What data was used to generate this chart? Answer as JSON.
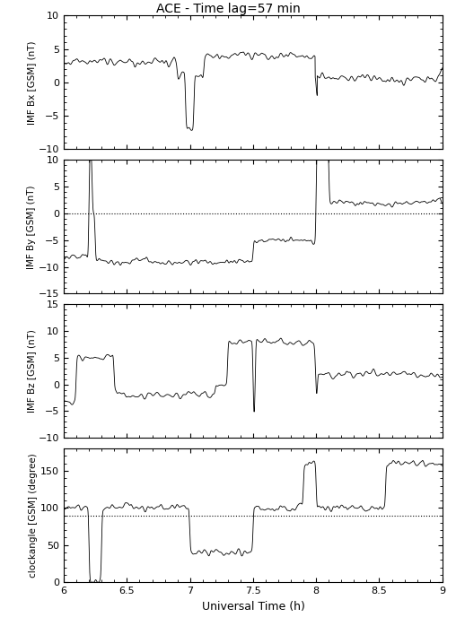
{
  "title": "ACE - Time lag=57 min",
  "xlabel": "Universal Time (h)",
  "xlim": [
    6,
    9
  ],
  "xticks": [
    6,
    6.5,
    7,
    7.5,
    8,
    8.5,
    9
  ],
  "panels": [
    {
      "ylabel": "IMF Bx [GSM] (nT)",
      "ylim": [
        -10,
        10
      ],
      "yticks": [
        -10,
        -5,
        0,
        5,
        10
      ],
      "hline": null,
      "hline_style": null
    },
    {
      "ylabel": "IMF By [GSM] (nT)",
      "ylim": [
        -15,
        10
      ],
      "yticks": [
        -15,
        -10,
        -5,
        0,
        5,
        10
      ],
      "hline": 0,
      "hline_style": "dotted"
    },
    {
      "ylabel": "IMF Bz [GSM] (nT)",
      "ylim": [
        -10,
        15
      ],
      "yticks": [
        -10,
        -5,
        0,
        5,
        10,
        15
      ],
      "hline": null,
      "hline_style": null
    },
    {
      "ylabel": "clockangle [GSM] (degree)",
      "ylim": [
        0,
        180
      ],
      "yticks": [
        0,
        50,
        100,
        150
      ],
      "hline": 90,
      "hline_style": "dotted"
    }
  ],
  "line_color": "#000000",
  "bg_color": "#ffffff",
  "fig_bg_color": "#ffffff"
}
